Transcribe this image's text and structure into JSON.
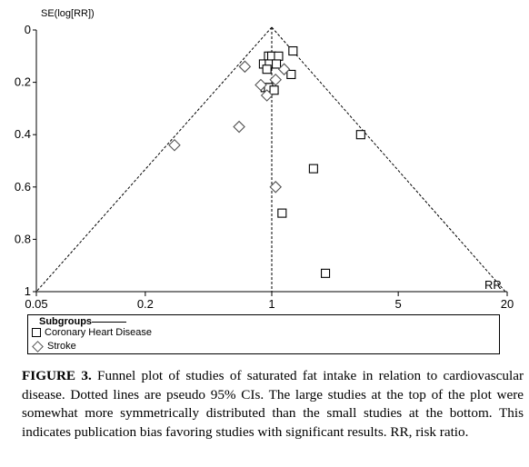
{
  "chart_data": {
    "type": "scatter",
    "title": "",
    "xlabel": "RR",
    "ylabel": "SE(log[RR])",
    "x_scale": "log",
    "xlim": [
      0.05,
      20
    ],
    "ylim": [
      0,
      1
    ],
    "y_inverted": true,
    "x_ticks": [
      "0.05",
      "0.2",
      "1",
      "5",
      "20"
    ],
    "y_ticks": [
      "0",
      "0.2",
      "0.4",
      "0.6",
      "0.8",
      "1"
    ],
    "reference_line_x": 1,
    "ci_lines": "pseudo 95% CI",
    "series": [
      {
        "name": "Coronary Heart Disease",
        "marker": "square",
        "points": [
          {
            "x": 0.96,
            "y": 0.1
          },
          {
            "x": 1.0,
            "y": 0.1
          },
          {
            "x": 1.09,
            "y": 0.1
          },
          {
            "x": 1.31,
            "y": 0.08
          },
          {
            "x": 0.9,
            "y": 0.13
          },
          {
            "x": 0.97,
            "y": 0.13
          },
          {
            "x": 1.06,
            "y": 0.13
          },
          {
            "x": 0.94,
            "y": 0.15
          },
          {
            "x": 1.28,
            "y": 0.17
          },
          {
            "x": 0.92,
            "y": 0.22
          },
          {
            "x": 0.96,
            "y": 0.22
          },
          {
            "x": 1.03,
            "y": 0.23
          },
          {
            "x": 3.1,
            "y": 0.4
          },
          {
            "x": 1.7,
            "y": 0.53
          },
          {
            "x": 1.14,
            "y": 0.7
          },
          {
            "x": 1.98,
            "y": 0.93
          }
        ]
      },
      {
        "name": "Stroke",
        "marker": "diamond",
        "points": [
          {
            "x": 0.71,
            "y": 0.14
          },
          {
            "x": 1.17,
            "y": 0.15
          },
          {
            "x": 1.05,
            "y": 0.19
          },
          {
            "x": 0.87,
            "y": 0.21
          },
          {
            "x": 0.94,
            "y": 0.25
          },
          {
            "x": 0.66,
            "y": 0.37
          },
          {
            "x": 0.29,
            "y": 0.44
          },
          {
            "x": 1.05,
            "y": 0.6
          }
        ]
      }
    ],
    "legend": {
      "title": "Subgroups",
      "placement": "bottom",
      "entries": [
        "Coronary Heart Disease",
        "Stroke"
      ]
    }
  },
  "caption": {
    "label": "FIGURE 3.",
    "text": "Funnel plot of studies of saturated fat intake in relation to cardiovascular disease. Dotted lines are pseudo 95% CIs. The large studies at the top of the plot were somewhat more symmetrically distributed than the small studies at the bottom. This indicates publication bias favoring studies with significant results. RR, risk ratio."
  }
}
